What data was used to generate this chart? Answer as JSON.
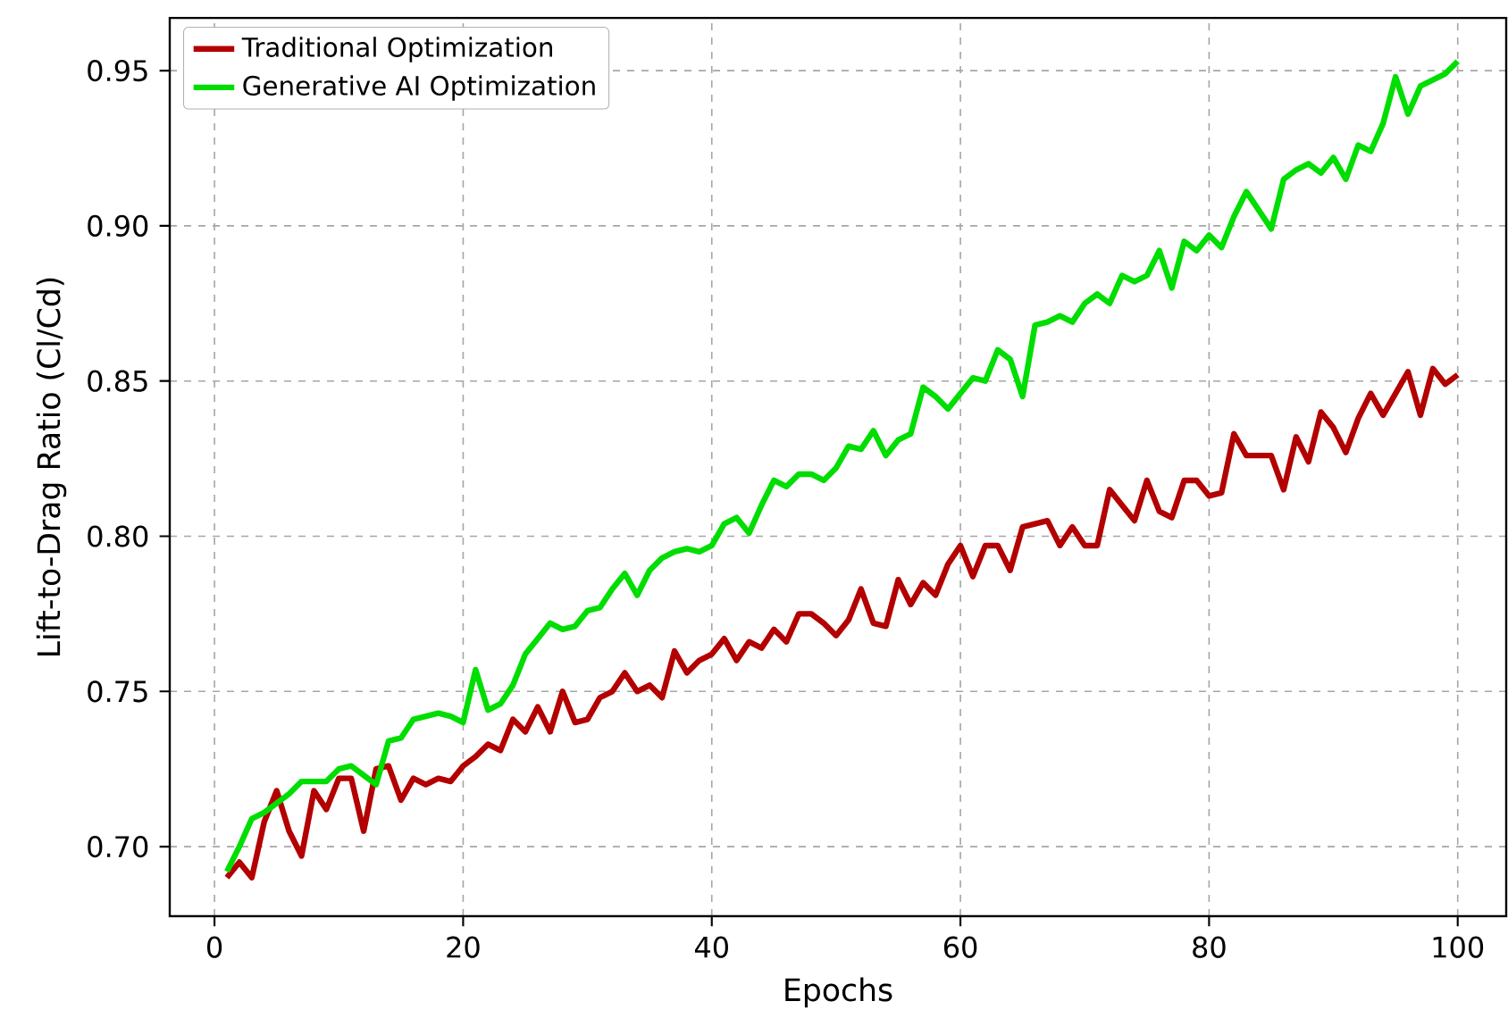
{
  "chart_data": {
    "type": "line",
    "xlabel": "Epochs",
    "ylabel": "Lift-to-Drag Ratio (Cl/Cd)",
    "xlim": [
      -3.6,
      103.9
    ],
    "ylim": [
      0.6776,
      0.967
    ],
    "xticks": [
      0,
      20,
      40,
      60,
      80,
      100
    ],
    "yticks": [
      {
        "value": 0.7,
        "label": "0.70"
      },
      0.75,
      {
        "value": 0.8,
        "label": "0.80"
      },
      0.85,
      {
        "value": 0.9,
        "label": "0.90"
      },
      0.95
    ],
    "grid": true,
    "legend": "top left",
    "line_style": "solid",
    "marker": "none",
    "x": [
      1,
      2,
      3,
      4,
      5,
      6,
      7,
      8,
      9,
      10,
      11,
      12,
      13,
      14,
      15,
      16,
      17,
      18,
      19,
      20,
      21,
      22,
      23,
      24,
      25,
      26,
      27,
      28,
      29,
      30,
      31,
      32,
      33,
      34,
      35,
      36,
      37,
      38,
      39,
      40,
      41,
      42,
      43,
      44,
      45,
      46,
      47,
      48,
      49,
      50,
      51,
      52,
      53,
      54,
      55,
      56,
      57,
      58,
      59,
      60,
      61,
      62,
      63,
      64,
      65,
      66,
      67,
      68,
      69,
      70,
      71,
      72,
      73,
      74,
      75,
      76,
      77,
      78,
      79,
      80,
      81,
      82,
      83,
      84,
      85,
      86,
      87,
      88,
      89,
      90,
      91,
      92,
      93,
      94,
      95,
      96,
      97,
      98,
      99,
      100
    ],
    "series": [
      {
        "name": "Traditional Optimization",
        "color": "#b30000",
        "values": [
          0.69,
          0.695,
          0.69,
          0.708,
          0.718,
          0.705,
          0.697,
          0.718,
          0.712,
          0.722,
          0.722,
          0.705,
          0.725,
          0.726,
          0.715,
          0.722,
          0.72,
          0.722,
          0.721,
          0.726,
          0.729,
          0.733,
          0.731,
          0.741,
          0.737,
          0.745,
          0.737,
          0.75,
          0.74,
          0.741,
          0.748,
          0.75,
          0.756,
          0.75,
          0.752,
          0.748,
          0.763,
          0.756,
          0.76,
          0.762,
          0.767,
          0.76,
          0.766,
          0.764,
          0.77,
          0.766,
          0.775,
          0.775,
          0.772,
          0.768,
          0.773,
          0.783,
          0.772,
          0.771,
          0.786,
          0.778,
          0.785,
          0.781,
          0.791,
          0.797,
          0.787,
          0.797,
          0.797,
          0.789,
          0.803,
          0.804,
          0.805,
          0.797,
          0.803,
          0.797,
          0.797,
          0.815,
          0.81,
          0.805,
          0.818,
          0.808,
          0.806,
          0.818,
          0.818,
          0.813,
          0.814,
          0.833,
          0.826,
          0.826,
          0.826,
          0.815,
          0.832,
          0.824,
          0.84,
          0.835,
          0.827,
          0.838,
          0.846,
          0.839,
          0.846,
          0.853,
          0.839,
          0.854,
          0.849,
          0.852
        ]
      },
      {
        "name": "Generative AI Optimization",
        "color": "#00dd00",
        "values": [
          0.692,
          0.7,
          0.709,
          0.711,
          0.714,
          0.717,
          0.721,
          0.721,
          0.721,
          0.725,
          0.726,
          0.723,
          0.72,
          0.734,
          0.735,
          0.741,
          0.742,
          0.743,
          0.742,
          0.74,
          0.757,
          0.744,
          0.746,
          0.752,
          0.762,
          0.767,
          0.772,
          0.77,
          0.771,
          0.776,
          0.777,
          0.783,
          0.788,
          0.781,
          0.789,
          0.793,
          0.795,
          0.796,
          0.795,
          0.797,
          0.804,
          0.806,
          0.801,
          0.81,
          0.818,
          0.816,
          0.82,
          0.82,
          0.818,
          0.822,
          0.829,
          0.828,
          0.834,
          0.826,
          0.831,
          0.833,
          0.848,
          0.845,
          0.841,
          0.846,
          0.851,
          0.85,
          0.86,
          0.857,
          0.845,
          0.868,
          0.869,
          0.871,
          0.869,
          0.875,
          0.878,
          0.875,
          0.884,
          0.882,
          0.884,
          0.892,
          0.88,
          0.895,
          0.892,
          0.897,
          0.893,
          0.903,
          0.911,
          0.905,
          0.899,
          0.915,
          0.918,
          0.92,
          0.917,
          0.922,
          0.915,
          0.926,
          0.924,
          0.933,
          0.948,
          0.936,
          0.945,
          0.947,
          0.949,
          0.953
        ]
      }
    ]
  }
}
